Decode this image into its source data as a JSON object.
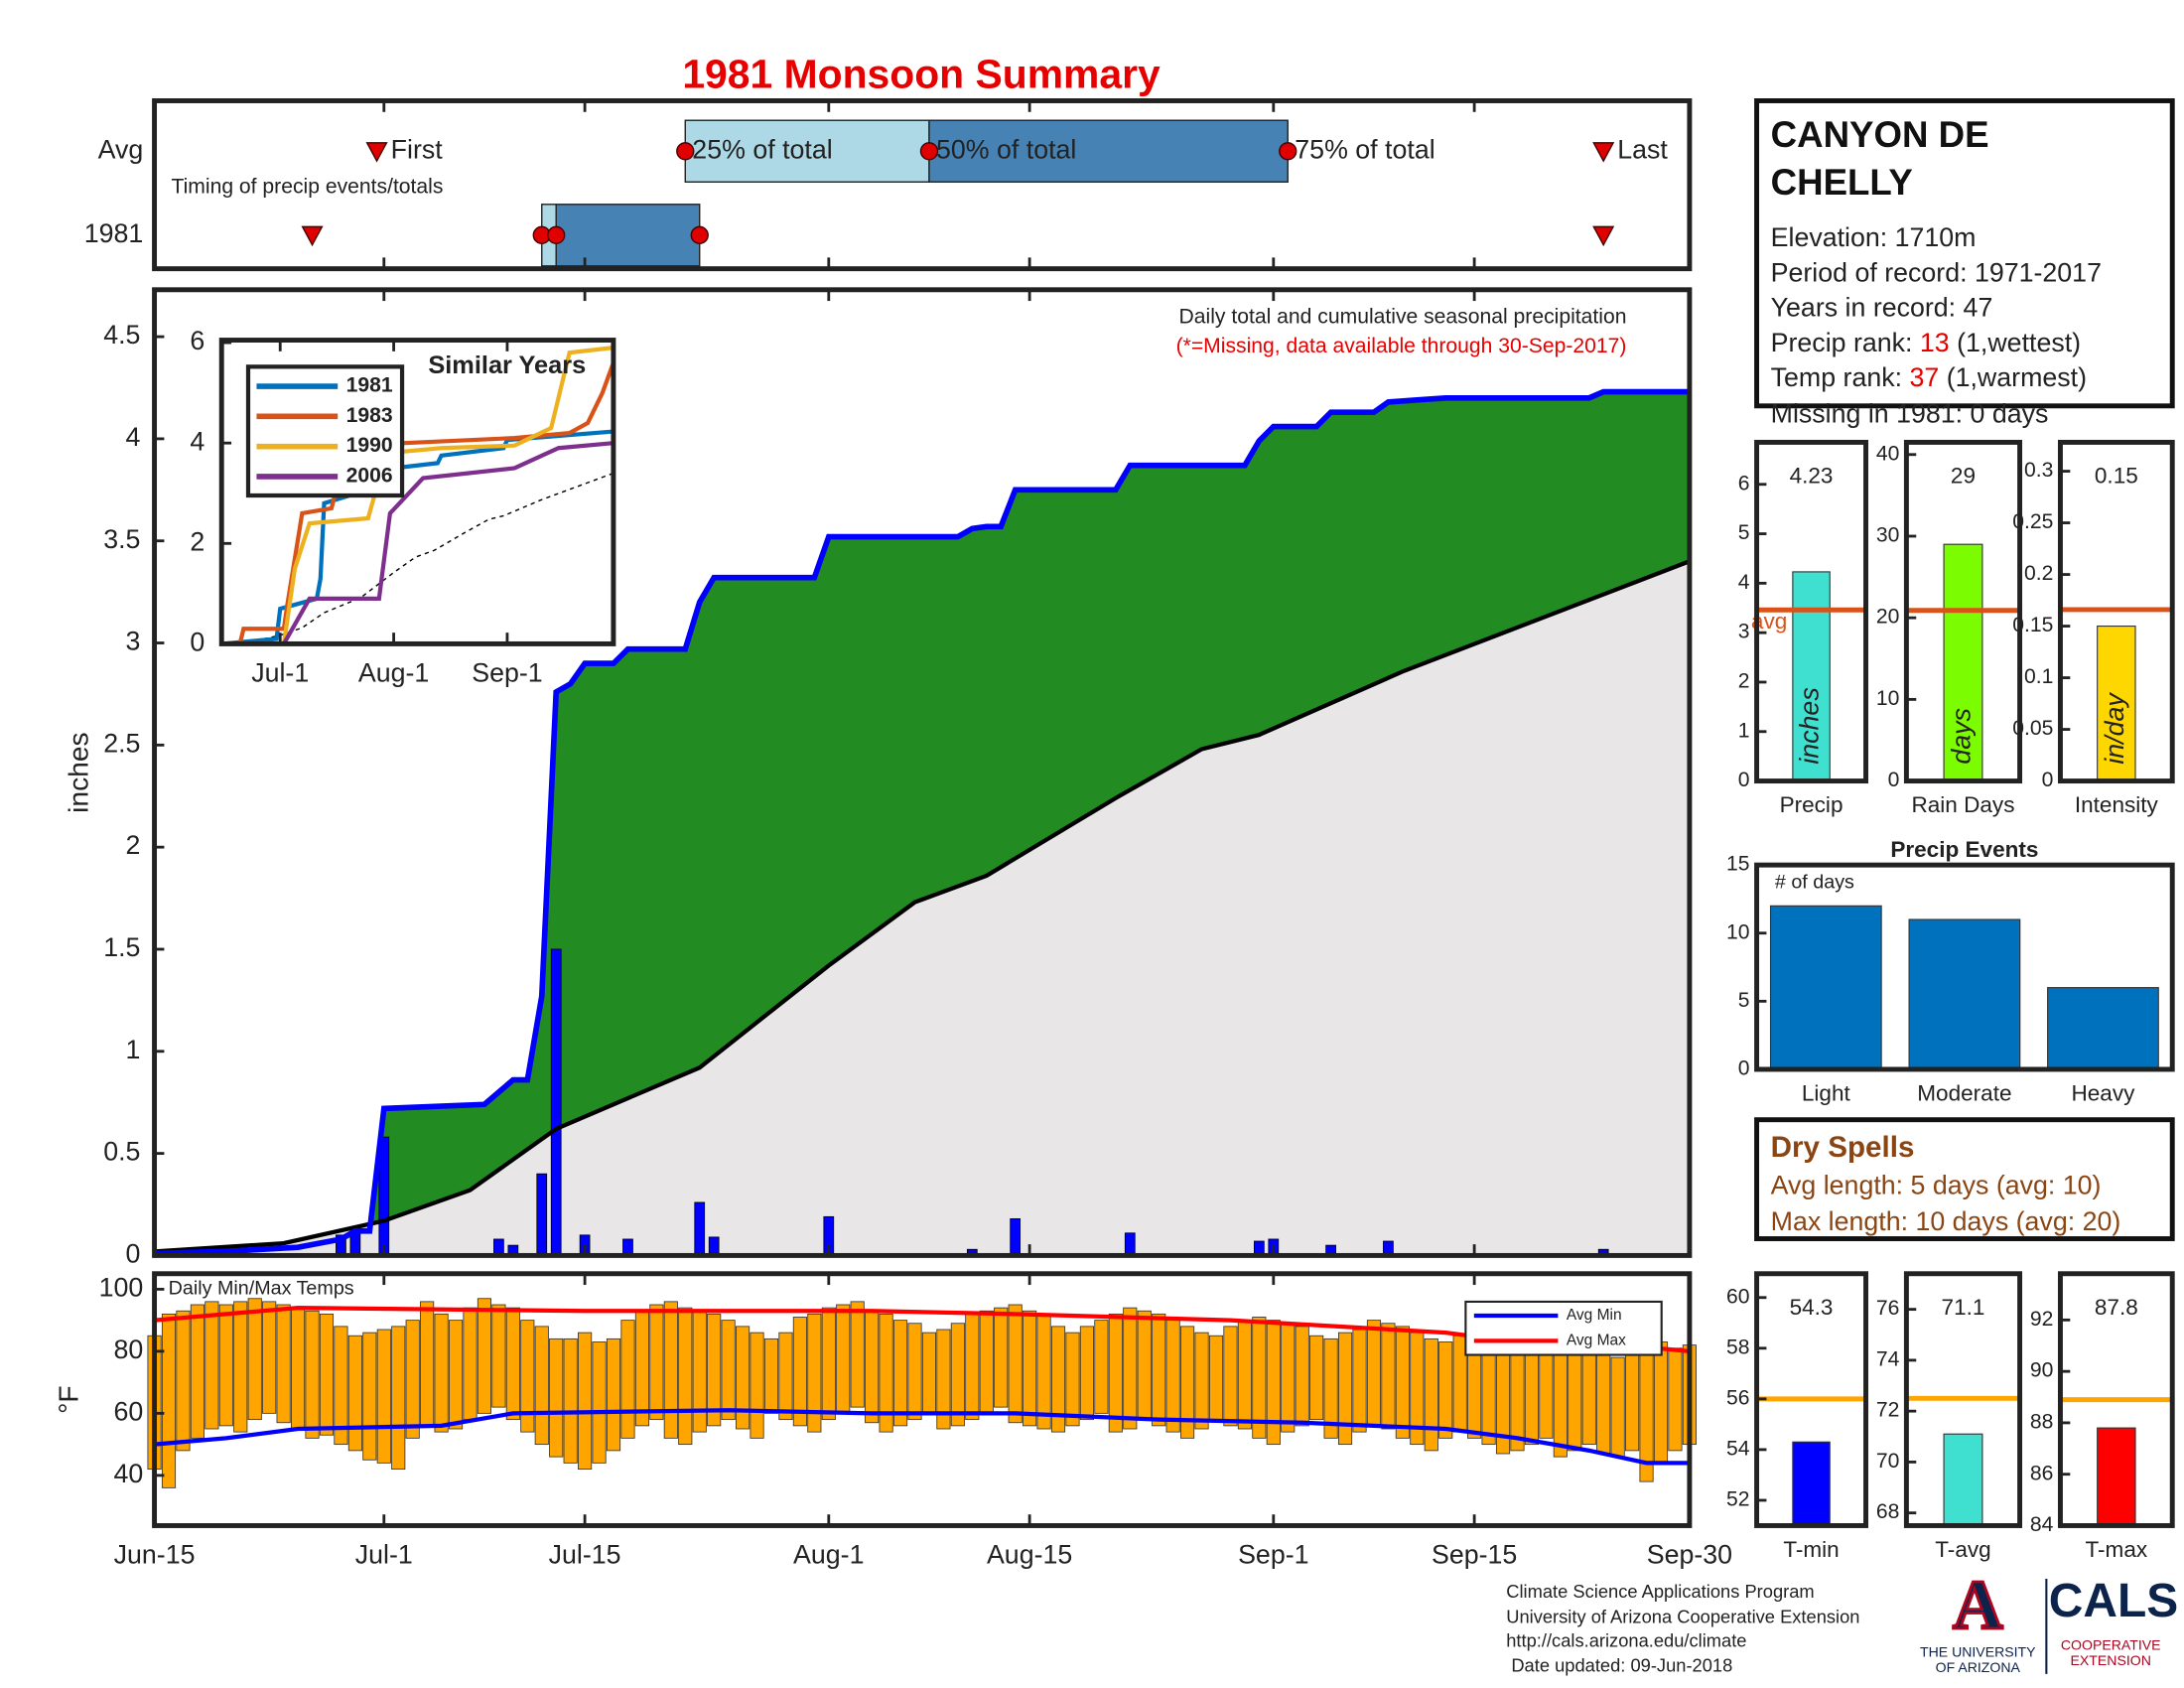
{
  "title": "1981 Monsoon Summary",
  "station": {
    "name": [
      "CANYON DE",
      "CHELLY"
    ],
    "elevation": "Elevation: 1710m",
    "period": "Period of record: 1971-2017",
    "years": "Years in record: 47",
    "precip_rank": {
      "label": "Precip rank:",
      "value": 13,
      "note": "(1,wettest)"
    },
    "temp_rank": {
      "label": "Temp rank:",
      "value": 37,
      "note": "(1,warmest)"
    },
    "missing": "Missing in 1981: 0 days"
  },
  "dry_spells": {
    "title": "Dry Spells",
    "lines": [
      "Avg length: 5 days (avg: 10)",
      "Max length: 10 days (avg: 20)"
    ]
  },
  "footer": {
    "lines": [
      "Climate Science Applications Program",
      "University of Arizona Cooperative Extension",
      "http://cals.arizona.edu/climate",
      " Date updated: 09-Jun-2018"
    ],
    "logo": {
      "mark": "A",
      "university": [
        "THE UNIVERSITY",
        "OF ARIZONA"
      ],
      "cals": "CALS",
      "extension": [
        "COOPERATIVE",
        "EXTENSION"
      ]
    }
  },
  "chart_data": [
    {
      "type": "timing",
      "label": "Timing of precip events/totals",
      "xlim": [
        0,
        107
      ],
      "markers": [
        "First",
        "25% of total",
        "50% of total",
        "75% of total",
        "Last"
      ],
      "rows": [
        {
          "name": "Avg",
          "values": [
            15.5,
            37,
            54,
            79,
            101
          ]
        },
        {
          "name": "1981",
          "values": [
            11,
            27,
            28,
            38,
            101
          ]
        }
      ]
    },
    {
      "type": "area",
      "title": "Daily total and cumulative seasonal precipitation",
      "subtitle": "(*=Missing, data available through 30-Sep-2017)",
      "ylabel": "inches",
      "xlim": [
        0,
        107
      ],
      "ylim": [
        0,
        4.73
      ],
      "xticks": [
        {
          "value": 0,
          "label": "Jun-15"
        },
        {
          "value": 16,
          "label": "Jul-1"
        },
        {
          "value": 30,
          "label": "Jul-15"
        },
        {
          "value": 47,
          "label": "Aug-1"
        },
        {
          "value": 61,
          "label": "Aug-15"
        },
        {
          "value": 78,
          "label": "Sep-1"
        },
        {
          "value": 92,
          "label": "Sep-15"
        },
        {
          "value": 107,
          "label": "Sep-30"
        }
      ],
      "yticks": [
        0,
        0.5,
        1,
        1.5,
        2,
        2.5,
        3,
        3.5,
        4,
        4.5
      ],
      "daily": {
        "color": "#0000ff",
        "x": [
          13,
          14,
          16,
          24,
          25,
          27,
          28,
          30,
          33,
          38,
          39,
          47,
          57,
          60,
          68,
          77,
          78,
          82,
          86,
          101
        ],
        "values": [
          0.1,
          0.12,
          0.58,
          0.08,
          0.05,
          0.4,
          1.5,
          0.1,
          0.08,
          0.26,
          0.09,
          0.19,
          0.03,
          0.18,
          0.11,
          0.07,
          0.08,
          0.05,
          0.07,
          0.03
        ]
      },
      "cumulative": {
        "color": "#0000ff",
        "fill": "#228b22",
        "x": [
          0,
          5,
          10,
          13,
          14,
          15,
          16,
          23,
          24,
          25,
          26,
          27,
          28,
          29,
          30,
          32,
          33,
          37,
          38,
          39,
          46,
          47,
          56,
          57,
          58,
          59,
          60,
          67,
          68,
          76,
          77,
          78,
          81,
          82,
          85,
          86,
          88,
          90,
          100,
          101,
          107
        ],
        "values": [
          0.01,
          0.02,
          0.04,
          0.08,
          0.12,
          0.12,
          0.72,
          0.74,
          0.8,
          0.86,
          0.86,
          1.27,
          2.76,
          2.8,
          2.9,
          2.9,
          2.97,
          2.97,
          3.2,
          3.32,
          3.32,
          3.52,
          3.52,
          3.56,
          3.57,
          3.57,
          3.75,
          3.75,
          3.87,
          3.87,
          3.99,
          4.06,
          4.06,
          4.13,
          4.13,
          4.18,
          4.19,
          4.2,
          4.2,
          4.23,
          4.23
        ]
      },
      "average": {
        "color": "#000000",
        "fill": "#e8e6e6",
        "x": [
          0,
          9,
          16,
          22,
          28,
          38,
          47,
          53,
          58,
          67,
          73,
          77,
          87,
          97,
          107
        ],
        "values": [
          0.02,
          0.06,
          0.17,
          0.32,
          0.62,
          0.92,
          1.42,
          1.73,
          1.86,
          2.24,
          2.48,
          2.55,
          2.86,
          3.13,
          3.4
        ]
      }
    },
    {
      "type": "line",
      "title": "Similar Years",
      "legend": "upper left",
      "xlim": [
        0,
        107
      ],
      "ylim": [
        0,
        6.05
      ],
      "xticks": [
        {
          "value": 16,
          "label": "Jul-1"
        },
        {
          "value": 47,
          "label": "Aug-1"
        },
        {
          "value": 78,
          "label": "Sep-1"
        }
      ],
      "yticks": [
        0,
        2,
        4,
        6
      ],
      "series": [
        {
          "name": "1981",
          "color": "#0072bd",
          "x": [
            0,
            15,
            16,
            26,
            27,
            28,
            37,
            38,
            47,
            59,
            60,
            77,
            78,
            107
          ],
          "values": [
            0,
            0.1,
            0.7,
            0.9,
            1.3,
            2.8,
            3.0,
            3.3,
            3.5,
            3.6,
            3.75,
            3.9,
            4.06,
            4.23
          ]
        },
        {
          "name": "1983",
          "color": "#d95319",
          "x": [
            0,
            5,
            6,
            17,
            18,
            22,
            30,
            34,
            50,
            80,
            95,
            100,
            104,
            107
          ],
          "values": [
            0,
            0,
            0.3,
            0.3,
            0.8,
            2.6,
            2.7,
            3.8,
            4.0,
            4.1,
            4.2,
            4.4,
            5.0,
            5.6
          ]
        },
        {
          "name": "1990",
          "color": "#edb120",
          "x": [
            0,
            17,
            20,
            24,
            40,
            45,
            60,
            80,
            90,
            95,
            107
          ],
          "values": [
            0,
            0,
            1.5,
            2.4,
            2.5,
            3.8,
            3.9,
            3.95,
            4.3,
            5.8,
            5.9
          ]
        },
        {
          "name": "2006",
          "color": "#7e2f8e",
          "x": [
            0,
            17,
            24,
            43,
            46,
            55,
            80,
            92,
            107
          ],
          "values": [
            0,
            0,
            0.9,
            0.9,
            2.6,
            3.3,
            3.5,
            3.9,
            4.0
          ]
        }
      ]
    },
    {
      "type": "range_bar",
      "title": "Daily Min/Max Temps",
      "ylabel": "°F",
      "legend": "upper right",
      "color": "#ffa500",
      "xlim": [
        0,
        107
      ],
      "ylim": [
        23.8,
        105
      ],
      "yticks": [
        40,
        60,
        80,
        100
      ],
      "max": [
        85,
        92,
        93,
        95,
        96,
        95,
        96,
        97,
        96,
        95,
        94,
        93,
        92,
        88,
        85,
        86,
        87,
        88,
        90,
        96,
        92,
        90,
        94,
        97,
        95,
        94,
        90,
        88,
        84,
        84,
        86,
        83,
        84,
        90,
        93,
        95,
        96,
        94,
        93,
        92,
        90,
        88,
        86,
        84,
        86,
        91,
        92,
        94,
        95,
        96,
        93,
        92,
        90,
        89,
        86,
        87,
        89,
        92,
        93,
        94,
        95,
        93,
        92,
        88,
        86,
        88,
        90,
        92,
        94,
        93,
        92,
        90,
        88,
        86,
        85,
        88,
        90,
        91,
        90,
        89,
        88,
        85,
        84,
        86,
        87,
        90,
        89,
        88,
        86,
        84,
        83,
        85,
        86,
        87,
        84,
        82,
        80,
        83,
        84,
        82,
        83,
        80,
        78,
        82,
        84,
        83,
        81,
        82
      ],
      "min": [
        42,
        36,
        48,
        52,
        55,
        56,
        54,
        58,
        60,
        57,
        55,
        52,
        53,
        50,
        48,
        45,
        44,
        42,
        52,
        56,
        54,
        55,
        58,
        60,
        62,
        58,
        54,
        50,
        46,
        44,
        42,
        44,
        48,
        52,
        56,
        58,
        52,
        50,
        54,
        56,
        58,
        55,
        52,
        60,
        58,
        56,
        54,
        58,
        60,
        62,
        57,
        54,
        56,
        58,
        60,
        55,
        56,
        58,
        60,
        62,
        57,
        56,
        55,
        54,
        56,
        58,
        60,
        54,
        55,
        58,
        56,
        54,
        52,
        55,
        58,
        56,
        55,
        52,
        50,
        54,
        56,
        58,
        52,
        50,
        54,
        56,
        55,
        52,
        50,
        48,
        52,
        54,
        52,
        50,
        47,
        48,
        50,
        52,
        46,
        48,
        50,
        47,
        46,
        48,
        38,
        44,
        48,
        50
      ],
      "series": [
        {
          "name": "Avg Min",
          "color": "#0000ff",
          "x": [
            0,
            5,
            10,
            20,
            25,
            40,
            50,
            60,
            70,
            80,
            90,
            95,
            100,
            104,
            107
          ],
          "values": [
            50,
            52,
            55,
            56,
            60,
            61,
            60,
            60,
            58,
            57,
            55,
            52,
            48,
            44,
            44
          ]
        },
        {
          "name": "Avg Max",
          "color": "#ff0000",
          "x": [
            0,
            10,
            30,
            50,
            60,
            75,
            90,
            95,
            100,
            107
          ],
          "values": [
            90,
            94,
            93,
            93,
            92,
            90,
            86,
            83,
            83,
            80
          ]
        }
      ]
    },
    {
      "type": "bar",
      "categories": [
        "Precip"
      ],
      "values": [
        4.23
      ],
      "show_values": true,
      "color": "#40e0d0",
      "bar_label": "inches",
      "avg": 3.46,
      "avg_label": "avg",
      "avg_color": "#d95319",
      "ylim": [
        0,
        6.85
      ],
      "yticks": [
        0,
        1,
        2,
        3,
        4,
        5,
        6
      ]
    },
    {
      "type": "bar",
      "categories": [
        "Rain Days"
      ],
      "values": [
        29
      ],
      "show_values": true,
      "color": "#7cfc00",
      "bar_label": "days",
      "avg": 20.9,
      "avg_color": "#d95319",
      "ylim": [
        0,
        41.5
      ],
      "yticks": [
        0,
        10,
        20,
        30,
        40
      ]
    },
    {
      "type": "bar",
      "categories": [
        "Intensity"
      ],
      "values": [
        0.15
      ],
      "show_values": true,
      "color": "#ffd700",
      "bar_label": "in/day",
      "avg": 0.166,
      "avg_color": "#d95319",
      "ylim": [
        0,
        0.328
      ],
      "yticks": [
        0,
        0.05,
        0.1,
        0.15,
        0.2,
        0.25,
        0.3
      ]
    },
    {
      "type": "bar",
      "title": "Precip Events",
      "ylabel": "# of days",
      "categories": [
        "Light",
        "Moderate",
        "Heavy"
      ],
      "values": [
        12,
        11,
        6
      ],
      "color": "#0072bd",
      "ylim": [
        0,
        15
      ],
      "yticks": [
        0,
        5,
        10,
        15
      ]
    },
    {
      "type": "bar",
      "categories": [
        "T-min"
      ],
      "values": [
        54.3
      ],
      "show_values": true,
      "color": "#0000ff",
      "avg": 56.0,
      "avg_color": "#ffa500",
      "ylim": [
        51,
        60.94
      ],
      "yticks": [
        52,
        54,
        56,
        58,
        60
      ]
    },
    {
      "type": "bar",
      "categories": [
        "T-avg"
      ],
      "values": [
        71.1
      ],
      "show_values": true,
      "color": "#40e0d0",
      "avg": 72.5,
      "avg_color": "#ffa500",
      "ylim": [
        67.5,
        77.4
      ],
      "yticks": [
        68,
        70,
        72,
        74,
        76
      ]
    },
    {
      "type": "bar",
      "categories": [
        "T-max"
      ],
      "values": [
        87.8
      ],
      "show_values": true,
      "color": "#ff0000",
      "avg": 88.9,
      "avg_color": "#ffa500",
      "ylim": [
        84,
        93.8
      ],
      "yticks": [
        84,
        86,
        88,
        90,
        92
      ]
    }
  ]
}
